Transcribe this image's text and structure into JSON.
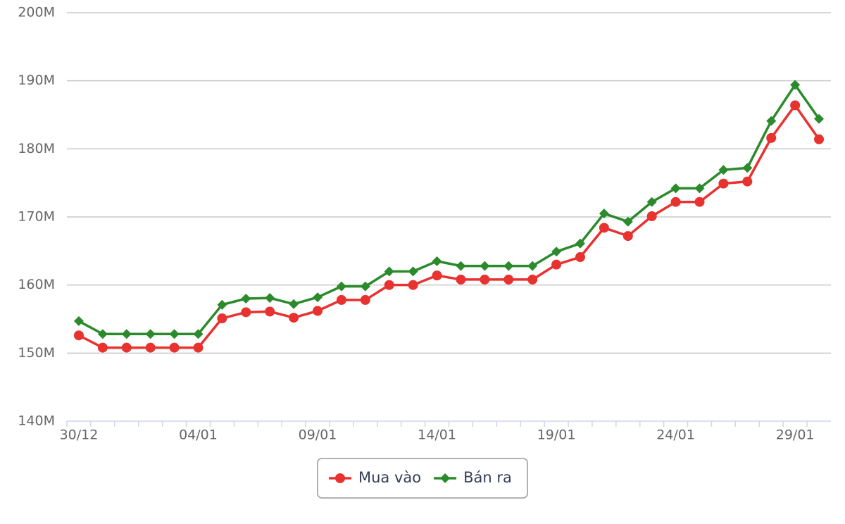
{
  "chart_data": {
    "type": "line",
    "categories": [
      "30/12",
      null,
      null,
      null,
      null,
      "04/01",
      null,
      null,
      null,
      null,
      "09/01",
      null,
      null,
      null,
      null,
      "14/01",
      null,
      null,
      null,
      null,
      "19/01",
      null,
      null,
      null,
      null,
      "24/01",
      null,
      null,
      null,
      null,
      "29/01",
      null
    ],
    "series": [
      {
        "name": "Mua vào",
        "color": "#e8322f",
        "marker": "circle",
        "values": [
          152.6,
          150.8,
          150.8,
          150.8,
          150.8,
          150.8,
          155.1,
          156.0,
          156.1,
          155.2,
          156.2,
          157.8,
          157.8,
          160.0,
          160.0,
          161.4,
          160.8,
          160.8,
          160.8,
          160.8,
          163.0,
          164.1,
          168.4,
          167.2,
          170.1,
          172.2,
          172.2,
          174.9,
          175.2,
          181.6,
          186.4,
          181.4
        ]
      },
      {
        "name": "Bán ra",
        "color": "#2b8a2b",
        "marker": "diamond",
        "values": [
          154.7,
          152.8,
          152.8,
          152.8,
          152.8,
          152.8,
          157.1,
          158.0,
          158.1,
          157.2,
          158.2,
          159.8,
          159.8,
          162.0,
          162.0,
          163.5,
          162.8,
          162.8,
          162.8,
          162.8,
          164.9,
          166.1,
          170.5,
          169.3,
          172.2,
          174.2,
          174.2,
          176.9,
          177.2,
          184.1,
          189.4,
          184.4
        ]
      }
    ],
    "ylim": [
      140,
      200
    ],
    "yticks": [
      {
        "value": 140,
        "label": "140M"
      },
      {
        "value": 150,
        "label": "150M"
      },
      {
        "value": 160,
        "label": "160M"
      },
      {
        "value": 170,
        "label": "170M"
      },
      {
        "value": 180,
        "label": "180M"
      },
      {
        "value": 190,
        "label": "190M"
      },
      {
        "value": 200,
        "label": "200M"
      }
    ],
    "grid": true,
    "legend": "bottom"
  }
}
